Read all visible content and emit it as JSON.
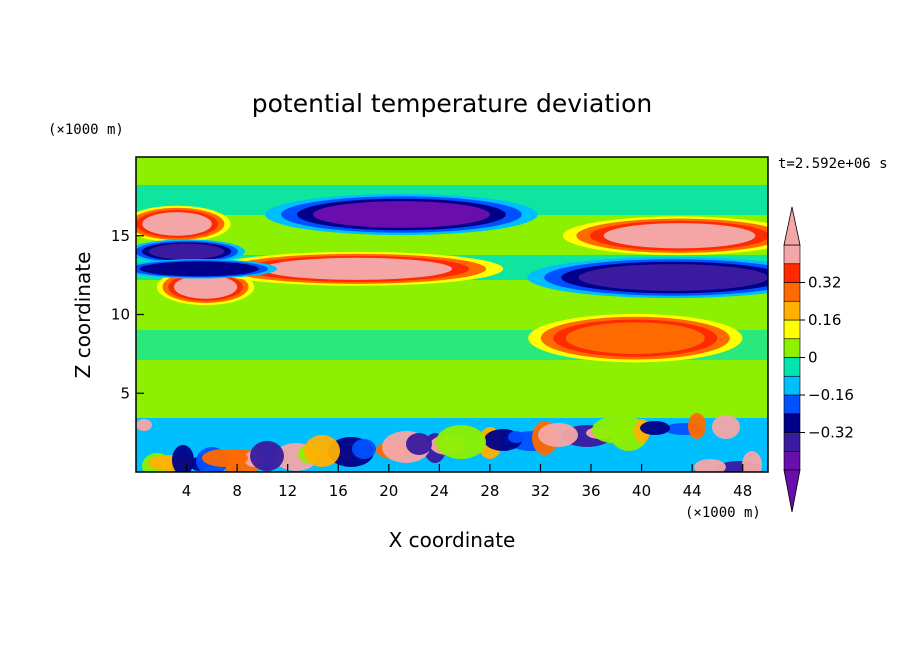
{
  "chart_data": {
    "type": "heatmap",
    "title": "potential temperature deviation",
    "xlabel": "X coordinate",
    "ylabel": "Z coordinate",
    "x_unit_label": "(×1000 m)",
    "y_unit_label": "(×1000 m)",
    "time_label": "t=2.592e+06 s",
    "xlim": [
      0,
      50
    ],
    "ylim": [
      0,
      20
    ],
    "x_ticks": [
      "4",
      "8",
      "12",
      "16",
      "20",
      "24",
      "28",
      "32",
      "36",
      "40",
      "44",
      "48"
    ],
    "x_tick_values": [
      4,
      8,
      12,
      16,
      20,
      24,
      28,
      32,
      36,
      40,
      44,
      48
    ],
    "y_ticks": [
      "5",
      "10",
      "15"
    ],
    "y_tick_values": [
      5,
      10,
      15
    ],
    "colorbar": {
      "tick_labels": [
        "0.32",
        "0.16",
        "0",
        "−0.16",
        "−0.32"
      ],
      "tick_values": [
        0.32,
        0.16,
        0,
        -0.16,
        -0.32
      ],
      "levels": [
        -0.48,
        -0.4,
        -0.32,
        -0.24,
        -0.16,
        -0.08,
        0,
        0.08,
        0.16,
        0.24,
        0.32,
        0.4,
        0.48
      ],
      "colors": [
        "#6a0dad",
        "#3a1a9e",
        "#00008b",
        "#0050ff",
        "#00bfff",
        "#00e4b0",
        "#8cf000",
        "#ffff00",
        "#ffb000",
        "#ff6a00",
        "#ff2a00",
        "#f4a6a6"
      ],
      "under_color": "#6a0dad",
      "over_color": "#f4a6a6"
    },
    "features": [
      {
        "x": [
          3,
          8
        ],
        "z": [
          11,
          12.5
        ],
        "value": 0.5
      },
      {
        "x": [
          10,
          25
        ],
        "z": [
          12.2,
          13.6
        ],
        "value": 0.5
      },
      {
        "x": [
          37,
          49
        ],
        "z": [
          14.2,
          15.8
        ],
        "value": 0.5
      },
      {
        "x": [
          0.5,
          6
        ],
        "z": [
          15,
          16.5
        ],
        "value": 0.45
      },
      {
        "x": [
          14,
          28
        ],
        "z": [
          15.5,
          17.2
        ],
        "value": -0.45
      },
      {
        "x": [
          35,
          50
        ],
        "z": [
          11.5,
          13.2
        ],
        "value": -0.38
      },
      {
        "x": [
          1,
          7
        ],
        "z": [
          13.5,
          14.5
        ],
        "value": -0.35
      },
      {
        "x": [
          1,
          9
        ],
        "z": [
          12.5,
          13.3
        ],
        "value": -0.3
      },
      {
        "x": [
          34,
          45
        ],
        "z": [
          7.5,
          9.5
        ],
        "value": 0.3
      },
      {
        "x": [
          0,
          50
        ],
        "z": [
          0,
          3.5
        ],
        "value": "mixed"
      }
    ]
  }
}
